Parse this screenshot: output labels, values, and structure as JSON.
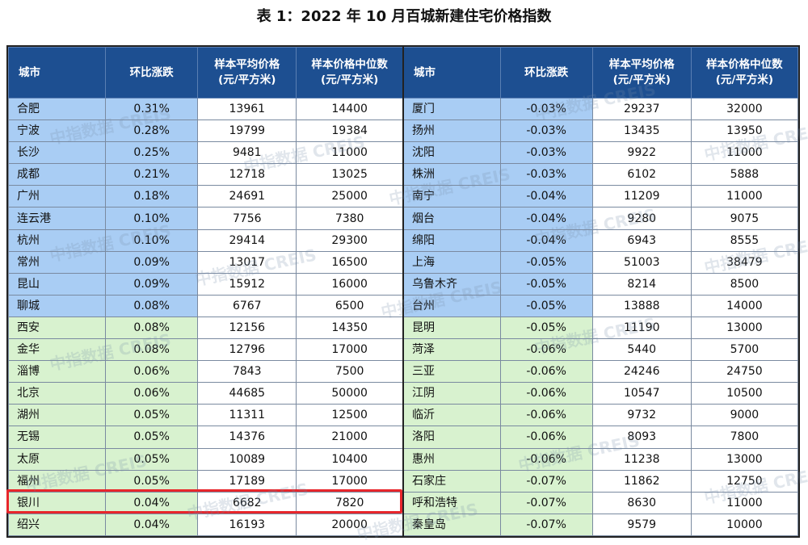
{
  "title": "表 1：2022 年 10 月百城新建住宅价格指数",
  "headers": {
    "city": "城市",
    "change": "环比涨跌",
    "avg_line1": "样本平均价格",
    "avg_line2": "(元/平方米)",
    "median_line1": "样本价格中位数",
    "median_line2": "(元/平方米)"
  },
  "watermark": "中指数据 CREIS",
  "rows": [
    {
      "group": "blue",
      "left": {
        "city": "合肥",
        "change": "0.31%",
        "avg": "13961",
        "median": "14400"
      },
      "right": {
        "city": "厦门",
        "change": "-0.03%",
        "avg": "29237",
        "median": "32000"
      }
    },
    {
      "group": "blue",
      "left": {
        "city": "宁波",
        "change": "0.28%",
        "avg": "19799",
        "median": "19384"
      },
      "right": {
        "city": "扬州",
        "change": "-0.03%",
        "avg": "13435",
        "median": "13950"
      }
    },
    {
      "group": "blue",
      "left": {
        "city": "长沙",
        "change": "0.25%",
        "avg": "9481",
        "median": "11000"
      },
      "right": {
        "city": "沈阳",
        "change": "-0.03%",
        "avg": "9922",
        "median": "11000"
      }
    },
    {
      "group": "blue",
      "left": {
        "city": "成都",
        "change": "0.21%",
        "avg": "12718",
        "median": "13025"
      },
      "right": {
        "city": "株洲",
        "change": "-0.03%",
        "avg": "6102",
        "median": "5888"
      }
    },
    {
      "group": "blue",
      "left": {
        "city": "广州",
        "change": "0.18%",
        "avg": "24691",
        "median": "25000"
      },
      "right": {
        "city": "南宁",
        "change": "-0.04%",
        "avg": "11209",
        "median": "11000"
      }
    },
    {
      "group": "blue",
      "left": {
        "city": "连云港",
        "change": "0.10%",
        "avg": "7756",
        "median": "7380"
      },
      "right": {
        "city": "烟台",
        "change": "-0.04%",
        "avg": "9280",
        "median": "9075"
      }
    },
    {
      "group": "blue",
      "left": {
        "city": "杭州",
        "change": "0.10%",
        "avg": "29414",
        "median": "29300"
      },
      "right": {
        "city": "绵阳",
        "change": "-0.04%",
        "avg": "6943",
        "median": "8555"
      }
    },
    {
      "group": "blue",
      "left": {
        "city": "常州",
        "change": "0.09%",
        "avg": "13017",
        "median": "16500"
      },
      "right": {
        "city": "上海",
        "change": "-0.05%",
        "avg": "51003",
        "median": "38479"
      }
    },
    {
      "group": "blue",
      "left": {
        "city": "昆山",
        "change": "0.09%",
        "avg": "15912",
        "median": "16000"
      },
      "right": {
        "city": "乌鲁木齐",
        "change": "-0.05%",
        "avg": "8214",
        "median": "8500"
      }
    },
    {
      "group": "blue",
      "left": {
        "city": "聊城",
        "change": "0.08%",
        "avg": "6767",
        "median": "6500"
      },
      "right": {
        "city": "台州",
        "change": "-0.05%",
        "avg": "13888",
        "median": "14000"
      }
    },
    {
      "group": "green",
      "left": {
        "city": "西安",
        "change": "0.08%",
        "avg": "12156",
        "median": "14350"
      },
      "right": {
        "city": "昆明",
        "change": "-0.05%",
        "avg": "11190",
        "median": "13000"
      }
    },
    {
      "group": "green",
      "left": {
        "city": "金华",
        "change": "0.08%",
        "avg": "12796",
        "median": "17000"
      },
      "right": {
        "city": "菏泽",
        "change": "-0.06%",
        "avg": "5440",
        "median": "5700"
      }
    },
    {
      "group": "green",
      "left": {
        "city": "淄博",
        "change": "0.06%",
        "avg": "7843",
        "median": "7500"
      },
      "right": {
        "city": "三亚",
        "change": "-0.06%",
        "avg": "24246",
        "median": "24750"
      }
    },
    {
      "group": "green",
      "left": {
        "city": "北京",
        "change": "0.06%",
        "avg": "44685",
        "median": "50000"
      },
      "right": {
        "city": "江阴",
        "change": "-0.06%",
        "avg": "10547",
        "median": "10500"
      }
    },
    {
      "group": "green",
      "left": {
        "city": "湖州",
        "change": "0.05%",
        "avg": "11311",
        "median": "12500"
      },
      "right": {
        "city": "临沂",
        "change": "-0.06%",
        "avg": "9732",
        "median": "9000"
      }
    },
    {
      "group": "green",
      "left": {
        "city": "无锡",
        "change": "0.05%",
        "avg": "14376",
        "median": "21000"
      },
      "right": {
        "city": "洛阳",
        "change": "-0.06%",
        "avg": "8093",
        "median": "7800"
      }
    },
    {
      "group": "green",
      "left": {
        "city": "太原",
        "change": "0.05%",
        "avg": "10089",
        "median": "10400"
      },
      "right": {
        "city": "惠州",
        "change": "-0.06%",
        "avg": "11238",
        "median": "13000"
      }
    },
    {
      "group": "green",
      "left": {
        "city": "福州",
        "change": "0.05%",
        "avg": "17189",
        "median": "17000"
      },
      "right": {
        "city": "石家庄",
        "change": "-0.07%",
        "avg": "11862",
        "median": "12750"
      }
    },
    {
      "group": "green",
      "left": {
        "city": "银川",
        "change": "0.04%",
        "avg": "6682",
        "median": "7820"
      },
      "right": {
        "city": "呼和浩特",
        "change": "-0.07%",
        "avg": "8630",
        "median": "11000"
      }
    },
    {
      "group": "green",
      "left": {
        "city": "绍兴",
        "change": "0.04%",
        "avg": "16193",
        "median": "20000"
      },
      "right": {
        "city": "秦皇岛",
        "change": "-0.07%",
        "avg": "9579",
        "median": "10000"
      }
    }
  ]
}
